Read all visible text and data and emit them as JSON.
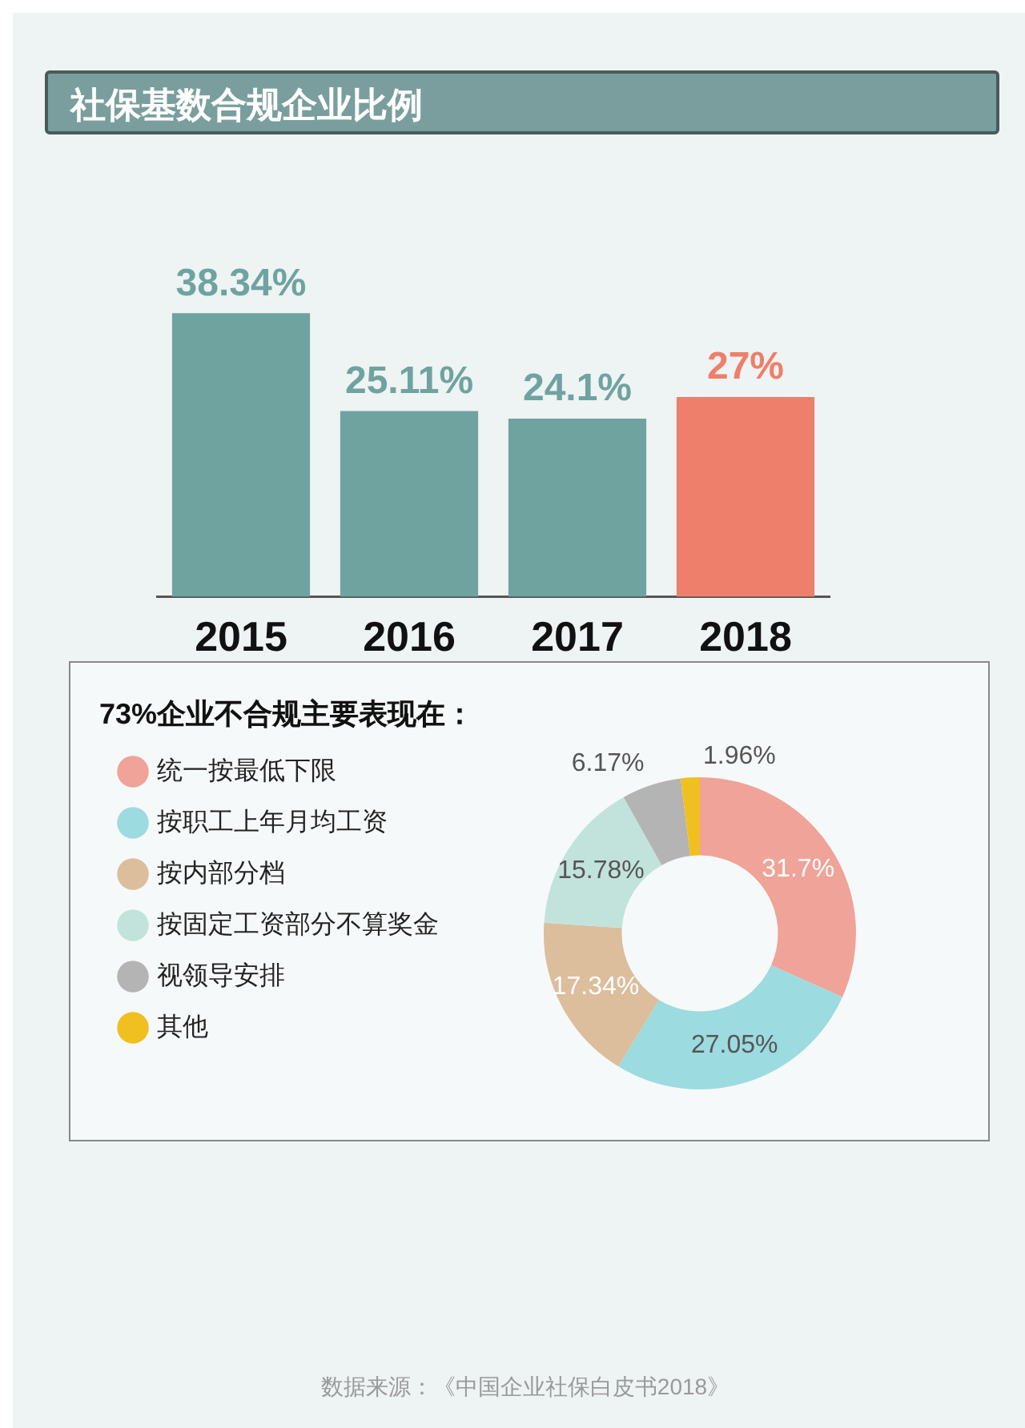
{
  "chart_data": [
    {
      "type": "bar",
      "title": "社保基数合规企业比例",
      "categories": [
        "2015",
        "2016",
        "2017",
        "2018"
      ],
      "values": [
        38.34,
        25.11,
        24.1,
        27
      ],
      "colors": [
        "#6fa3a0",
        "#6fa3a0",
        "#6fa3a0",
        "#ee7f6a"
      ],
      "value_labels": [
        "38.34%",
        "25.11%",
        "24.1%",
        "27%"
      ],
      "grid": false,
      "legend": false,
      "annotations": [
        "数据来源：《中国企业社保白皮书2018》"
      ]
    },
    {
      "type": "donut",
      "title": "73%企业不合规主要表现在：",
      "categories": [
        "统一按最低下限",
        "按职工上年月均工资",
        "按内部分档",
        "按固定工资部分不算奖金",
        "视领导安排",
        "其他"
      ],
      "values": [
        31.7,
        27.05,
        17.34,
        15.78,
        6.17,
        1.96
      ],
      "colors": [
        "#f0a398",
        "#9cdbe0",
        "#dcbd9c",
        "#c2e3dc",
        "#b4b4b4",
        "#f0c020"
      ],
      "value_labels": [
        "31.7%",
        "27.05%",
        "17.34%",
        "15.78%",
        "6.17%",
        "1.96%"
      ],
      "legend": "left"
    }
  ]
}
